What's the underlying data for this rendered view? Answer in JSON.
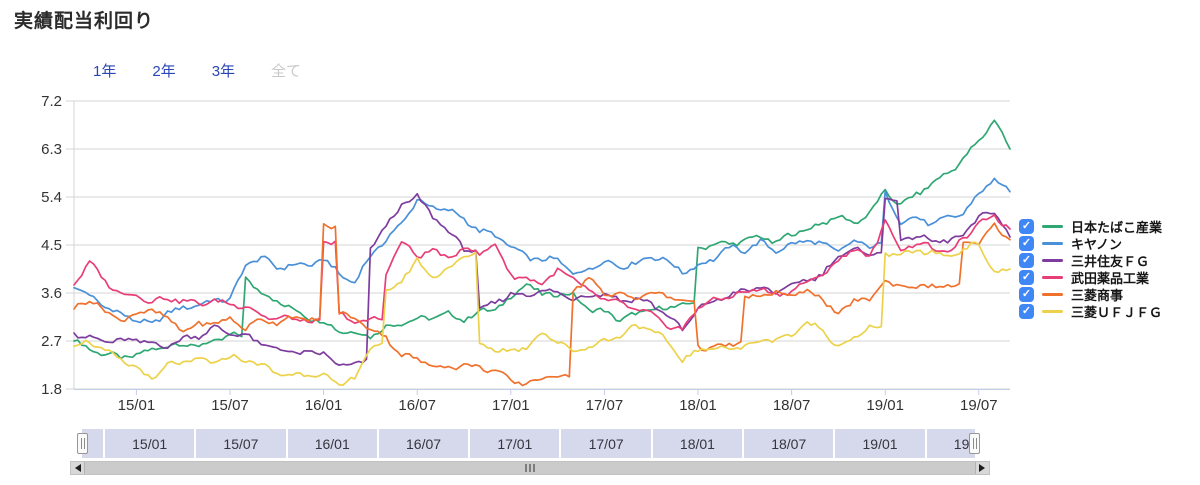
{
  "title": "実績配当利回り",
  "range_buttons": [
    {
      "key": "1y",
      "label": "1年",
      "selected": false
    },
    {
      "key": "2y",
      "label": "2年",
      "selected": false
    },
    {
      "key": "3y",
      "label": "3年",
      "selected": false
    },
    {
      "key": "all",
      "label": "全て",
      "selected": true
    }
  ],
  "legend": {
    "check_glyph": "✓",
    "checkbox_color": "#3f87f5"
  },
  "navigator": {
    "labels": [
      "15/01",
      "15/07",
      "16/01",
      "16/07",
      "17/01",
      "17/07",
      "18/01",
      "18/07",
      "19/01",
      "19/07"
    ]
  },
  "chart_data": {
    "type": "line",
    "title": "実績配当利回り",
    "xlabel": "",
    "ylabel": "",
    "ylim": [
      1.8,
      7.2
    ],
    "yticks": [
      1.8,
      2.7,
      3.6,
      4.5,
      5.4,
      6.3,
      7.2
    ],
    "xticks": [
      "15/01",
      "15/07",
      "16/01",
      "16/07",
      "17/01",
      "17/07",
      "18/01",
      "18/07",
      "19/01",
      "19/07"
    ],
    "x_start_month": "2014/09",
    "x_end_month": "2019/09",
    "x_interval": "monthly",
    "grid": true,
    "legend_position": "right",
    "series": [
      {
        "name": "日本たばこ産業",
        "color": "#2fa773",
        "values": [
          2.7,
          2.55,
          2.45,
          2.4,
          2.42,
          2.55,
          2.6,
          2.65,
          2.6,
          2.7,
          2.8,
          3.9,
          3.6,
          3.45,
          3.3,
          3.15,
          3.05,
          2.9,
          2.85,
          2.8,
          2.95,
          3.05,
          3.1,
          3.15,
          3.2,
          3.1,
          3.25,
          3.3,
          3.5,
          3.8,
          3.55,
          3.6,
          3.55,
          3.3,
          3.25,
          3.1,
          3.2,
          3.3,
          3.3,
          3.4,
          4.4,
          4.55,
          4.5,
          4.6,
          4.65,
          4.55,
          4.7,
          4.8,
          4.9,
          5.05,
          4.9,
          5.1,
          5.5,
          5.25,
          5.45,
          5.65,
          5.85,
          6.1,
          6.45,
          6.85,
          6.3
        ]
      },
      {
        "name": "キヤノン",
        "color": "#4a90d9",
        "values": [
          3.7,
          3.55,
          3.35,
          3.2,
          3.1,
          3.0,
          3.25,
          3.3,
          3.4,
          3.45,
          3.5,
          4.1,
          4.3,
          4.05,
          4.15,
          4.1,
          4.25,
          3.95,
          3.8,
          4.3,
          4.6,
          4.9,
          5.35,
          5.2,
          5.15,
          5.0,
          4.75,
          4.7,
          4.45,
          4.3,
          4.2,
          4.25,
          3.95,
          4.05,
          4.2,
          4.1,
          4.15,
          4.3,
          4.2,
          4.0,
          4.1,
          4.25,
          4.45,
          4.4,
          4.55,
          4.4,
          4.5,
          4.6,
          4.5,
          4.4,
          4.55,
          4.5,
          5.45,
          4.95,
          5.0,
          4.9,
          5.0,
          5.1,
          5.45,
          5.75,
          5.5
        ]
      },
      {
        "name": "三井住友ＦＧ",
        "color": "#7d3c9e",
        "values": [
          2.85,
          2.75,
          2.7,
          2.7,
          2.72,
          2.65,
          2.6,
          2.75,
          2.8,
          2.95,
          2.85,
          2.8,
          2.65,
          2.55,
          2.5,
          2.45,
          2.5,
          2.2,
          2.3,
          4.4,
          4.9,
          5.2,
          5.45,
          5.0,
          4.8,
          4.4,
          3.3,
          3.4,
          3.6,
          3.55,
          3.65,
          3.6,
          3.5,
          3.55,
          3.6,
          3.45,
          3.5,
          3.4,
          3.2,
          2.9,
          3.3,
          3.45,
          3.55,
          3.65,
          3.7,
          3.6,
          3.75,
          3.85,
          3.95,
          4.3,
          4.4,
          4.35,
          5.35,
          4.6,
          4.65,
          4.6,
          4.55,
          4.7,
          5.0,
          5.15,
          4.65
        ]
      },
      {
        "name": "武田薬品工業",
        "color": "#e83e78",
        "values": [
          3.75,
          4.2,
          3.8,
          3.6,
          3.55,
          3.45,
          3.5,
          3.45,
          3.4,
          3.45,
          3.4,
          3.35,
          3.2,
          3.1,
          3.15,
          3.05,
          4.55,
          3.2,
          3.05,
          3.1,
          4.0,
          4.55,
          4.3,
          4.4,
          4.25,
          4.45,
          4.35,
          4.5,
          3.95,
          3.85,
          3.8,
          4.0,
          3.9,
          3.6,
          3.5,
          3.4,
          3.3,
          3.2,
          3.0,
          2.9,
          3.35,
          3.45,
          3.55,
          3.6,
          3.7,
          3.55,
          3.65,
          3.8,
          3.95,
          4.2,
          4.45,
          4.25,
          4.95,
          4.4,
          4.55,
          4.45,
          4.35,
          4.6,
          4.9,
          5.05,
          4.8
        ]
      },
      {
        "name": "三菱商事",
        "color": "#f0712c",
        "values": [
          3.3,
          3.5,
          3.25,
          3.1,
          3.2,
          3.3,
          3.1,
          2.9,
          3.0,
          3.05,
          3.1,
          2.95,
          3.1,
          3.05,
          3.15,
          3.1,
          4.85,
          3.25,
          3.1,
          2.95,
          2.75,
          2.45,
          2.35,
          2.25,
          2.2,
          2.25,
          2.2,
          2.15,
          1.95,
          1.9,
          2.0,
          2.05,
          3.65,
          3.9,
          3.55,
          3.6,
          3.5,
          3.6,
          3.55,
          3.45,
          2.6,
          2.55,
          2.65,
          3.5,
          3.55,
          3.6,
          3.55,
          3.65,
          3.5,
          3.15,
          3.5,
          3.45,
          3.85,
          3.7,
          3.75,
          3.7,
          3.75,
          4.5,
          4.55,
          4.85,
          4.6
        ]
      },
      {
        "name": "三菱ＵＦＪＦＧ",
        "color": "#ecd24a",
        "values": [
          2.6,
          2.7,
          2.5,
          2.35,
          2.2,
          1.97,
          2.25,
          2.3,
          2.35,
          2.3,
          2.4,
          2.35,
          2.25,
          2.1,
          2.05,
          2.1,
          2.05,
          1.87,
          2.0,
          2.6,
          3.6,
          3.85,
          4.2,
          3.9,
          4.05,
          4.3,
          2.65,
          2.55,
          2.5,
          2.6,
          2.85,
          2.7,
          2.5,
          2.6,
          2.7,
          2.8,
          3.0,
          2.9,
          2.7,
          2.35,
          2.5,
          2.6,
          2.55,
          2.6,
          2.7,
          2.75,
          2.8,
          3.05,
          2.9,
          2.6,
          2.75,
          2.95,
          4.35,
          4.3,
          4.4,
          4.35,
          4.3,
          4.4,
          4.55,
          3.95,
          4.05
        ]
      }
    ]
  }
}
